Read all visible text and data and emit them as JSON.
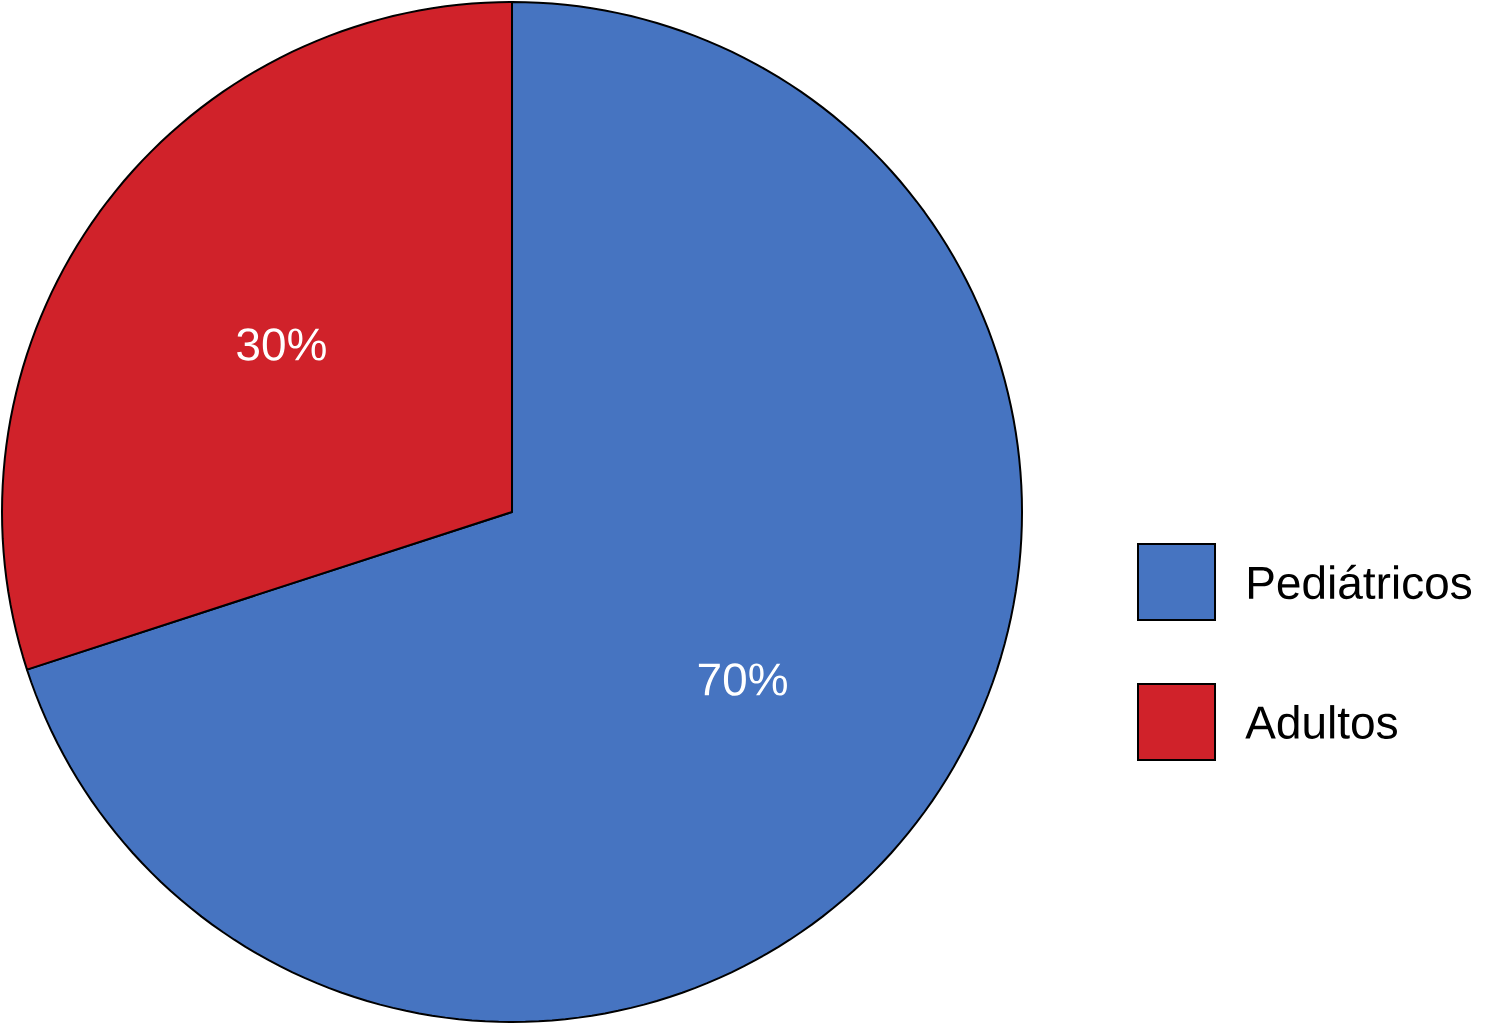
{
  "chart_data": {
    "type": "pie",
    "categories": [
      "Pediátricos",
      "Adultos"
    ],
    "values": [
      70,
      30
    ],
    "colors": [
      "#4674c1",
      "#d0222a"
    ],
    "value_labels": [
      "70%",
      "30%"
    ],
    "legend": "right"
  }
}
